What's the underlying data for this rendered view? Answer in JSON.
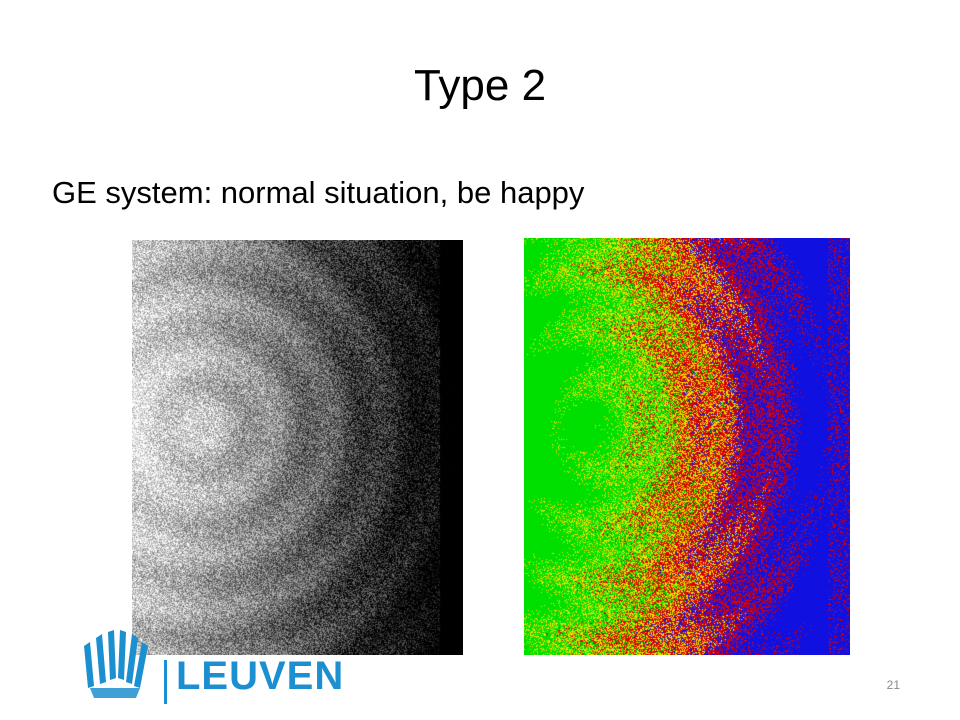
{
  "slide": {
    "title": "Type 2",
    "subtitle": "GE system: normal situation, be happy",
    "page_number": "21"
  },
  "images": {
    "grayscale": {
      "name": "grayscale-flood-image",
      "colormap": "gray"
    },
    "colored": {
      "name": "color-flood-image",
      "colormap": [
        "#00e000",
        "#f0e000",
        "#e00000",
        "#1010e0"
      ]
    }
  },
  "logo": {
    "text": "LEUVEN",
    "color": "#1c8fd0"
  }
}
